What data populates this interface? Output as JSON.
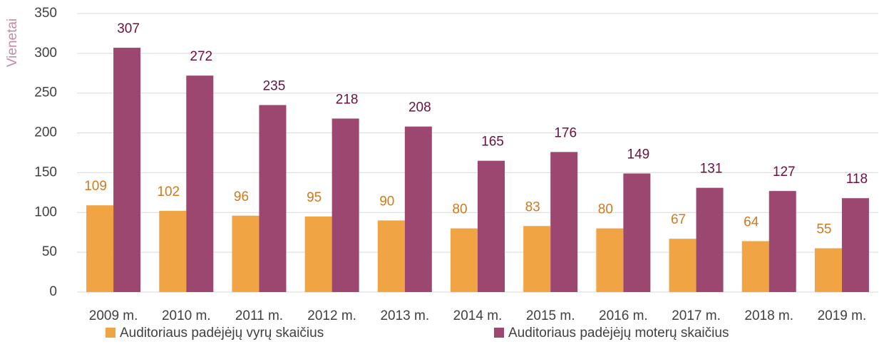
{
  "chart_data": {
    "type": "bar",
    "y_label": "Vienetai",
    "categories": [
      "2009 m.",
      "2010 m.",
      "2011 m.",
      "2012 m.",
      "2013 m.",
      "2014 m.",
      "2015 m.",
      "2016 m.",
      "2017 m.",
      "2018 m.",
      "2019 m."
    ],
    "series": [
      {
        "name": "Auditoriaus padėjėjų vyrų skaičius",
        "color": "#f0a443",
        "label_color": "#d07a1e",
        "values": [
          109,
          102,
          96,
          95,
          90,
          80,
          83,
          80,
          67,
          64,
          55
        ]
      },
      {
        "name": "Auditoriaus padėjėjų moterų skaičius",
        "color": "#9c4770",
        "label_color": "#6b1040",
        "values": [
          307,
          272,
          235,
          218,
          208,
          165,
          176,
          149,
          131,
          127,
          118
        ]
      }
    ],
    "ylim": [
      0,
      350
    ],
    "yticks": [
      0,
      50,
      100,
      150,
      200,
      250,
      300,
      350
    ],
    "grid": true,
    "y_label_color": "#c48aa6"
  }
}
